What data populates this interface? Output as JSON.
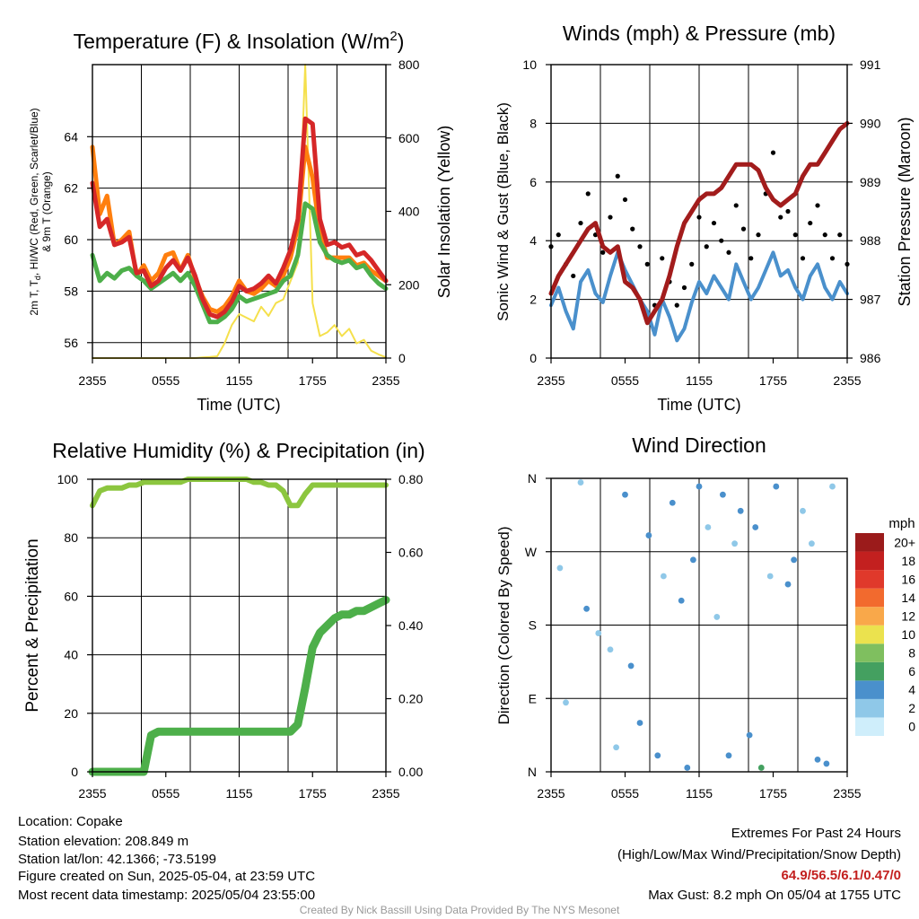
{
  "panels": {
    "temp": {
      "title": "Temperature (F) & Insolation (W/m",
      "title_sup": "2",
      "title_end": ")",
      "ylabel_left_1": "2m T, T",
      "ylabel_left_sub": "d",
      "ylabel_left_2": ", HI/WC (Red, Green, Scarlet/Blue)",
      "ylabel_left_3": "& 9m T (Orange)",
      "ylabel_right": "Solar Insolation (Yellow)",
      "xlabel": "Time (UTC)"
    },
    "wind": {
      "title": "Winds (mph) & Pressure (mb)",
      "ylabel_left": "Sonic Wind & Gust (Blue, Black)",
      "ylabel_right": "Station Pressure (Maroon)",
      "xlabel": "Time (UTC)"
    },
    "rh": {
      "title": "Relative Humidity (%) & Precipitation (in)",
      "ylabel_left": "Percent & Precipitation"
    },
    "dir": {
      "title": "Wind Direction",
      "ylabel_left": "Direction (Colored By Speed)",
      "colorbar_title": "mph"
    }
  },
  "x_ticks": [
    "2355",
    "0555",
    "1155",
    "1755",
    "2355"
  ],
  "chart_data": [
    {
      "type": "line",
      "title": "Temperature (F) & Insolation (W/m2)",
      "xlabel": "Time (UTC)",
      "x_range": [
        "2355",
        "2355"
      ],
      "ylim": [
        55.4,
        66.8
      ],
      "y_ticks": [
        56,
        58,
        60,
        62,
        64
      ],
      "ylim_right": [
        0,
        800
      ],
      "y_ticks_right": [
        0,
        200,
        400,
        600,
        800
      ],
      "grid": true,
      "series": [
        {
          "color": "#d62728",
          "axis": "left",
          "values": [
            62.2,
            60.5,
            60.8,
            59.8,
            59.9,
            60.1,
            58.7,
            58.8,
            58.2,
            58.4,
            58.9,
            59.2,
            58.8,
            59.3,
            58.6,
            57.7,
            57.1,
            57.0,
            57.2,
            57.6,
            58.2,
            58.0,
            58.1,
            58.3,
            58.6,
            58.3,
            58.9,
            59.6,
            60.8,
            64.7,
            64.5,
            60.8,
            59.8,
            59.9,
            59.7,
            59.8,
            59.4,
            59.5,
            59.2,
            58.8,
            58.4
          ]
        },
        {
          "color": "#ff7f0e",
          "axis": "left",
          "values": [
            63.6,
            61.0,
            61.7,
            59.8,
            60.0,
            60.3,
            58.6,
            59.0,
            58.4,
            58.7,
            59.4,
            59.5,
            58.8,
            59.4,
            58.5,
            57.8,
            57.3,
            57.2,
            57.4,
            57.8,
            58.4,
            58.0,
            57.9,
            58.1,
            58.4,
            58.2,
            58.6,
            59.3,
            60.5,
            63.6,
            62.4,
            60.3,
            59.3,
            59.3,
            59.3,
            59.3,
            59.0,
            59.1,
            58.8,
            58.6,
            58.4
          ]
        },
        {
          "color": "#4daf4a",
          "axis": "left",
          "values": [
            59.4,
            58.4,
            58.7,
            58.5,
            58.8,
            58.9,
            58.6,
            58.4,
            58.1,
            58.3,
            58.5,
            58.7,
            58.4,
            58.7,
            58.2,
            57.5,
            56.8,
            56.8,
            57.0,
            57.3,
            57.8,
            57.6,
            57.7,
            57.8,
            57.9,
            58.0,
            58.4,
            58.6,
            59.4,
            61.4,
            61.2,
            59.9,
            59.4,
            59.2,
            59.1,
            59.2,
            58.9,
            59.0,
            58.6,
            58.3,
            58.1
          ]
        },
        {
          "color": "#f5e04c",
          "axis": "right",
          "values": [
            0,
            0,
            0,
            0,
            0,
            0,
            0,
            0,
            0,
            0,
            0,
            0,
            0,
            0,
            0,
            2,
            3,
            5,
            40,
            90,
            120,
            110,
            100,
            140,
            115,
            150,
            160,
            210,
            260,
            800,
            150,
            60,
            70,
            90,
            60,
            80,
            40,
            50,
            20,
            10,
            2
          ]
        }
      ]
    },
    {
      "type": "line",
      "title": "Winds (mph) & Pressure (mb)",
      "xlabel": "Time (UTC)",
      "ylabel": "Sonic Wind & Gust (Blue, Black)",
      "ylim": [
        0,
        10
      ],
      "y_ticks": [
        0,
        2,
        4,
        6,
        8,
        10
      ],
      "ylim_right": [
        986,
        991
      ],
      "y_ticks_right": [
        986,
        987,
        988,
        989,
        990,
        991
      ],
      "grid": true,
      "series": [
        {
          "color": "#4a90cc",
          "axis": "left",
          "values": [
            1.8,
            2.4,
            1.6,
            1.0,
            2.6,
            3.0,
            2.2,
            1.9,
            2.8,
            3.6,
            3.0,
            2.5,
            2.0,
            1.6,
            0.8,
            2.0,
            1.4,
            0.6,
            1.0,
            1.9,
            2.6,
            2.2,
            2.8,
            2.4,
            2.0,
            3.2,
            2.6,
            2.0,
            2.4,
            3.0,
            3.6,
            2.8,
            3.0,
            2.4,
            2.0,
            2.8,
            3.2,
            2.4,
            2.0,
            2.6,
            2.2
          ]
        },
        {
          "color": "#000000",
          "axis": "left",
          "values": [
            3.8,
            4.2,
            3.2,
            2.8,
            4.6,
            5.6,
            4.2,
            3.6,
            4.8,
            6.2,
            5.4,
            4.4,
            3.8,
            3.2,
            1.8,
            3.4,
            2.6,
            1.8,
            2.4,
            3.2,
            4.8,
            3.8,
            4.6,
            4.0,
            3.6,
            5.2,
            4.4,
            3.4,
            4.2,
            5.6,
            7.0,
            4.8,
            5.0,
            4.2,
            3.4,
            4.6,
            5.2,
            4.2,
            3.4,
            4.2,
            3.2
          ]
        },
        {
          "color": "#a21c1c",
          "axis": "right",
          "values": [
            987.1,
            987.4,
            987.6,
            987.8,
            988.0,
            988.2,
            988.3,
            987.9,
            987.8,
            987.9,
            987.3,
            987.2,
            987.0,
            986.6,
            986.8,
            987.0,
            987.4,
            987.9,
            988.3,
            988.5,
            988.7,
            988.8,
            988.8,
            988.9,
            989.1,
            989.3,
            989.3,
            989.3,
            989.2,
            988.9,
            988.7,
            988.6,
            988.7,
            988.8,
            989.1,
            989.3,
            989.3,
            989.5,
            989.7,
            989.9,
            990.0
          ]
        }
      ]
    },
    {
      "type": "line",
      "title": "Relative Humidity (%) & Precipitation (in)",
      "ylabel": "Percent & Precipitation",
      "ylim": [
        0,
        100
      ],
      "y_ticks": [
        0,
        20,
        40,
        60,
        80,
        100
      ],
      "ylim_right": [
        0,
        0.8
      ],
      "y_ticks_right": [
        "0.00",
        "0.20",
        "0.40",
        "0.60",
        "0.80"
      ],
      "grid": true,
      "series": [
        {
          "color": "#8cc63f",
          "axis": "left",
          "values": [
            91,
            96,
            97,
            97,
            97,
            98,
            98,
            99,
            99,
            99,
            99,
            99,
            99,
            100,
            100,
            100,
            100,
            100,
            100,
            100,
            100,
            100,
            99,
            99,
            98,
            98,
            96,
            91,
            91,
            95,
            98,
            98,
            98,
            98,
            98,
            98,
            98,
            98,
            98,
            98,
            98
          ]
        },
        {
          "color": "#4daf4a",
          "axis": "right",
          "values": [
            0,
            0,
            0,
            0,
            0,
            0,
            0,
            0,
            0.1,
            0.11,
            0.11,
            0.11,
            0.11,
            0.11,
            0.11,
            0.11,
            0.11,
            0.11,
            0.11,
            0.11,
            0.11,
            0.11,
            0.11,
            0.11,
            0.11,
            0.11,
            0.11,
            0.11,
            0.13,
            0.23,
            0.34,
            0.38,
            0.4,
            0.42,
            0.43,
            0.43,
            0.44,
            0.44,
            0.45,
            0.46,
            0.47
          ]
        }
      ]
    },
    {
      "type": "scatter",
      "title": "Wind Direction",
      "ylabel": "Direction (Colored By Speed)",
      "y_categories": [
        "N",
        "E",
        "S",
        "W",
        "N"
      ],
      "colorbar": {
        "title": "mph",
        "labels": [
          "0",
          "2",
          "4",
          "6",
          "8",
          "10",
          "12",
          "14",
          "16",
          "18",
          "20+"
        ],
        "colors": [
          "#cfeefb",
          "#8fc8e8",
          "#4a90cc",
          "#44a060",
          "#7fbf5f",
          "#ebe24e",
          "#f9a84a",
          "#f26a2e",
          "#e0392b",
          "#c3201f",
          "#9b1b1b"
        ]
      },
      "points": [
        [
          0.03,
          250,
          2
        ],
        [
          0.05,
          85,
          2
        ],
        [
          0.1,
          355,
          2
        ],
        [
          0.12,
          200,
          4
        ],
        [
          0.16,
          170,
          2
        ],
        [
          0.2,
          150,
          2
        ],
        [
          0.22,
          30,
          2
        ],
        [
          0.25,
          340,
          4
        ],
        [
          0.27,
          130,
          3
        ],
        [
          0.3,
          60,
          3
        ],
        [
          0.33,
          290,
          3
        ],
        [
          0.36,
          20,
          4
        ],
        [
          0.38,
          240,
          2
        ],
        [
          0.41,
          330,
          3
        ],
        [
          0.44,
          210,
          3
        ],
        [
          0.46,
          5,
          4
        ],
        [
          0.48,
          260,
          3
        ],
        [
          0.5,
          350,
          3
        ],
        [
          0.53,
          300,
          2
        ],
        [
          0.56,
          190,
          2
        ],
        [
          0.58,
          340,
          3
        ],
        [
          0.6,
          20,
          4
        ],
        [
          0.62,
          280,
          2
        ],
        [
          0.64,
          320,
          3
        ],
        [
          0.67,
          45,
          3
        ],
        [
          0.69,
          300,
          3
        ],
        [
          0.71,
          5,
          5
        ],
        [
          0.74,
          240,
          2
        ],
        [
          0.76,
          350,
          3
        ],
        [
          0.8,
          230,
          3
        ],
        [
          0.82,
          260,
          3
        ],
        [
          0.85,
          320,
          2
        ],
        [
          0.88,
          280,
          2
        ],
        [
          0.9,
          15,
          3
        ],
        [
          0.93,
          10,
          3
        ],
        [
          0.95,
          350,
          2
        ]
      ]
    }
  ],
  "footer": {
    "location": "Location: Copake",
    "elevation": "Station elevation: 208.849 m",
    "latlon": "Station lat/lon: 42.1366; -73.5199",
    "created": "Figure created on Sun, 2025-05-04, at 23:59 UTC",
    "recent": "Most recent data timestamp: 2025/05/04 23:55:00",
    "extremes_title": "Extremes For Past 24 Hours",
    "extremes_sub": "(High/Low/Max Wind/Precipitation/Snow Depth)",
    "extremes_values": "64.9/56.5/6.1/0.47/0",
    "extremes_color": "#c3201f",
    "max_gust": "Max Gust: 8.2 mph On 05/04 at 1755 UTC",
    "credit": "Created By Nick Bassill Using Data Provided By The NYS Mesonet"
  }
}
